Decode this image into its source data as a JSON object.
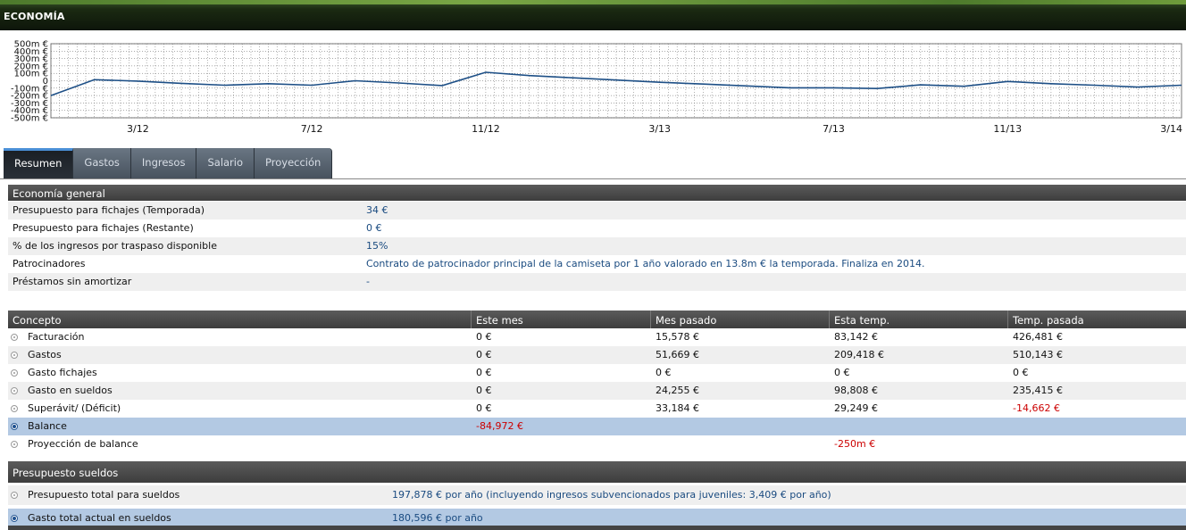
{
  "window": {
    "title": "ECONOMÍA"
  },
  "chart_data": {
    "type": "line",
    "title": "",
    "xlabel": "",
    "ylabel": "",
    "ylim": [
      -500,
      500
    ],
    "y_ticks": [
      "500m €",
      "400m €",
      "300m €",
      "200m €",
      "100m €",
      "0",
      "-100m €",
      "-200m €",
      "-300m €",
      "-400m €",
      "-500m €"
    ],
    "y_tick_values": [
      500,
      400,
      300,
      200,
      100,
      0,
      -100,
      -200,
      -300,
      -400,
      -500
    ],
    "x_ticks": [
      "3/12",
      "7/12",
      "11/12",
      "3/13",
      "7/13",
      "11/13",
      "3/14"
    ],
    "x_tick_index": [
      2,
      6,
      10,
      14,
      18,
      22,
      26
    ],
    "grid": true,
    "series": [
      {
        "name": "",
        "color": "#1d4f86",
        "values": [
          -200,
          15,
          -5,
          -35,
          -60,
          -40,
          -60,
          0,
          -30,
          -65,
          115,
          70,
          40,
          10,
          -20,
          -45,
          -70,
          -95,
          -95,
          -105,
          -55,
          -75,
          -10,
          -40,
          -60,
          -85,
          -60
        ]
      }
    ]
  },
  "tabs": [
    {
      "label": "Resumen",
      "active": true
    },
    {
      "label": "Gastos"
    },
    {
      "label": "Ingresos"
    },
    {
      "label": "Salario"
    },
    {
      "label": "Proyección"
    }
  ],
  "general": {
    "header": "Economía general",
    "rows": [
      {
        "label": "Presupuesto para fichajes (Temporada)",
        "value": "34 €"
      },
      {
        "label": "Presupuesto para fichajes (Restante)",
        "value": "0 €"
      },
      {
        "label": "% de los ingresos por traspaso disponible",
        "value": "15%"
      },
      {
        "label": "Patrocinadores",
        "value": "Contrato de patrocinador principal de la camiseta por 1 año valorado en 13.8m € la temporada. Finaliza en 2014."
      },
      {
        "label": "Préstamos sin amortizar",
        "value": "-"
      }
    ]
  },
  "concept_table": {
    "headers": [
      "Concepto",
      "Este mes",
      "Mes pasado",
      "Esta temp.",
      "Temp. pasada"
    ],
    "rows": [
      {
        "label": "Facturación",
        "cells": [
          "0 €",
          "15,578 €",
          "83,142 €",
          "426,481 €"
        ]
      },
      {
        "label": "Gastos",
        "cells": [
          "0 €",
          "51,669 €",
          "209,418 €",
          "510,143 €"
        ]
      },
      {
        "label": "Gasto fichajes",
        "cells": [
          "0 €",
          "0 €",
          "0 €",
          "0 €"
        ]
      },
      {
        "label": "Gasto en sueldos",
        "cells": [
          "0 €",
          "24,255 €",
          "98,808 €",
          "235,415 €"
        ]
      },
      {
        "label": "Superávit/ (Déficit)",
        "cells": [
          "0 €",
          "33,184 €",
          "29,249 €",
          "-14,662 €"
        ]
      },
      {
        "label": "Balance",
        "cells": [
          "-84,972 €",
          "",
          "",
          ""
        ]
      },
      {
        "label": "Proyección de balance",
        "cells": [
          "",
          "",
          "-250m €",
          ""
        ]
      }
    ]
  },
  "salaries": {
    "header": "Presupuesto sueldos",
    "rows": [
      {
        "label": "Presupuesto total para sueldos",
        "value": "197,878 € por año (incluyendo ingresos subvencionados para juveniles: 3,409 € por año)"
      },
      {
        "label": "Gasto total actual en sueldos",
        "value": "180,596 € por año"
      }
    ]
  }
}
